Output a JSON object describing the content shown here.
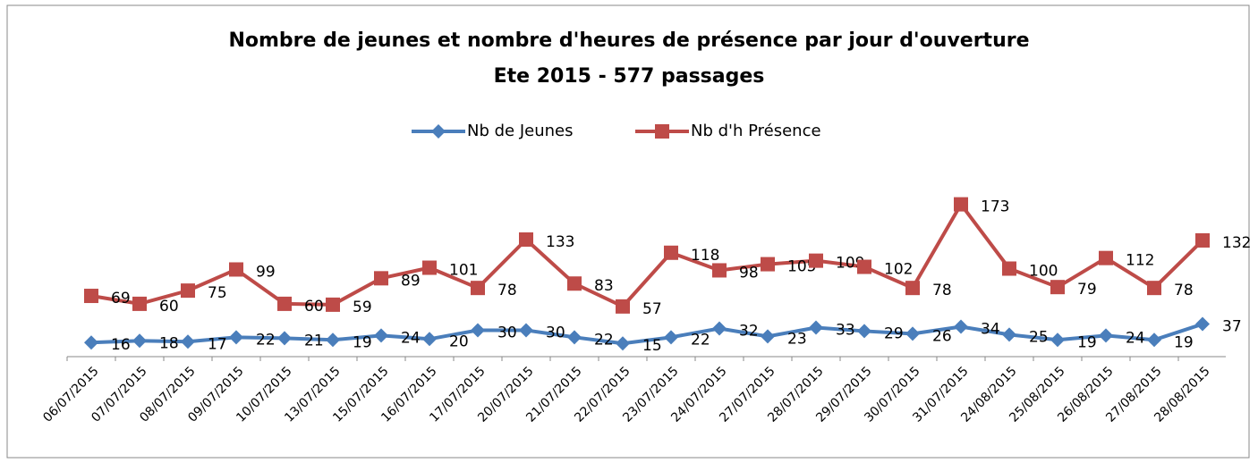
{
  "chart_data": {
    "type": "line",
    "title": "Nombre de jeunes et nombre d'heures de présence par jour d'ouverture",
    "subtitle": "Ete 2015 - 577 passages",
    "categories": [
      "06/07/2015",
      "07/07/2015",
      "08/07/2015",
      "09/07/2015",
      "10/07/2015",
      "13/07/2015",
      "15/07/2015",
      "16/07/2015",
      "17/07/2015",
      "20/07/2015",
      "21/07/2015",
      "22/07/2015",
      "23/07/2015",
      "24/07/2015",
      "27/07/2015",
      "28/07/2015",
      "29/07/2015",
      "30/07/2015",
      "31/07/2015",
      "24/08/2015",
      "25/08/2015",
      "26/08/2015",
      "27/08/2015",
      "28/08/2015"
    ],
    "series": [
      {
        "name": "Nb de Jeunes",
        "color": "#4a7ebb",
        "marker": "diamond",
        "values": [
          16,
          18,
          17,
          22,
          21,
          19,
          24,
          20,
          30,
          30,
          22,
          15,
          22,
          32,
          23,
          33,
          29,
          26,
          34,
          25,
          19,
          24,
          19,
          37
        ]
      },
      {
        "name": "Nb d'h Présence",
        "color": "#be4b48",
        "marker": "square",
        "values": [
          69,
          60,
          75,
          99,
          60,
          59,
          89,
          101,
          78,
          133,
          83,
          57,
          118,
          98,
          105,
          109,
          102,
          78,
          173,
          100,
          79,
          112,
          78,
          132
        ]
      }
    ],
    "ylim": [
      0,
      200
    ],
    "legend": "top"
  }
}
